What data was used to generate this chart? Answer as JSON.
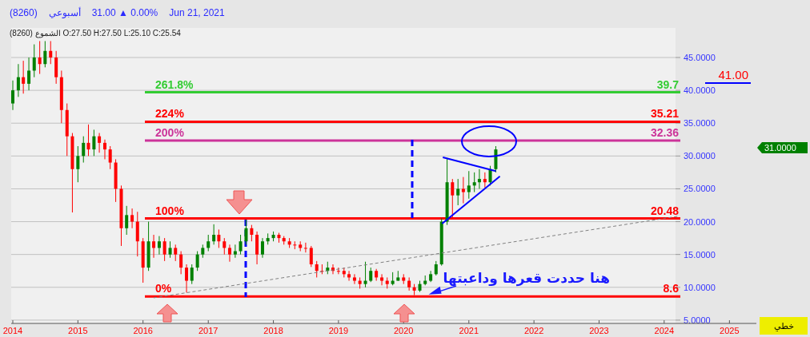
{
  "chart_data": {
    "type": "candlestick",
    "title": "(8260)   أسبوعي   31.00 ▲ 0.00%   Jun 21, 2021",
    "subtitle": "الشموع (8260) O:27.50  H:27.50  L:25.10  C:25.54",
    "xlim": [
      "2013-12-23",
      "2025-06-01"
    ],
    "xticks": [
      {
        "value": "2014-01-01",
        "label": "2014"
      },
      {
        "value": "2015-01-01",
        "label": "2015"
      },
      {
        "value": "2016-01-01",
        "label": "2016"
      },
      {
        "value": "2017-01-01",
        "label": "2017"
      },
      {
        "value": "2018-01-01",
        "label": "2018"
      },
      {
        "value": "2019-01-01",
        "label": "2019"
      },
      {
        "value": "2020-01-01",
        "label": "2020"
      },
      {
        "value": "2021-01-01",
        "label": "2021"
      },
      {
        "value": "2022-01-01",
        "label": "2022"
      },
      {
        "value": "2023-01-01",
        "label": "2023"
      },
      {
        "value": "2024-01-01",
        "label": "2024"
      },
      {
        "value": "2025-01-01",
        "label": "2025"
      }
    ],
    "ylim": [
      4.5,
      49.5
    ],
    "yticks": [
      {
        "value": 5,
        "label": "5.0000"
      },
      {
        "value": 10,
        "label": "10.0000"
      },
      {
        "value": 15,
        "label": "15.0000"
      },
      {
        "value": 20,
        "label": "20.0000"
      },
      {
        "value": 25,
        "label": "25.0000"
      },
      {
        "value": 30,
        "label": "30.0000"
      },
      {
        "value": 35,
        "label": "35.0000"
      },
      {
        "value": 40,
        "label": "40.0000"
      },
      {
        "value": 45,
        "label": "45.0000"
      }
    ],
    "grid": "y",
    "series": [
      {
        "color": "#008000",
        "x": [
          "2014-01",
          "2014-02",
          "2014-04",
          "2014-05",
          "2014-07",
          "2015-01",
          "2015-02",
          "2015-04",
          "2015-10",
          "2016-02",
          "2016-04",
          "2016-06",
          "2016-10",
          "2016-11",
          "2016-12",
          "2017-01",
          "2017-02",
          "2017-06",
          "2017-07",
          "2017-08",
          "2017-11",
          "2017-12",
          "2018-01",
          "2018-11",
          "2019-06",
          "2019-07",
          "2019-11",
          "2019-12",
          "2020-04",
          "2020-05",
          "2020-06",
          "2020-07",
          "2020-08",
          "2020-09",
          "2020-11",
          "2021-01",
          "2021-02",
          "2021-03",
          "2021-05",
          "2021-06"
        ],
        "ohlc": [
          [
            38,
            41.5,
            37,
            40
          ],
          [
            40,
            44,
            39,
            42
          ],
          [
            41,
            45,
            40,
            43
          ],
          [
            43,
            47,
            42,
            45
          ],
          [
            44,
            47.5,
            43.5,
            46
          ],
          [
            28,
            31.5,
            26,
            30
          ],
          [
            30,
            33,
            29,
            32
          ],
          [
            31,
            34,
            30,
            33
          ],
          [
            19,
            22.4,
            18,
            21
          ],
          [
            13,
            20,
            12.5,
            17
          ],
          [
            16,
            17.8,
            15,
            17
          ],
          [
            15,
            17,
            14.5,
            16
          ],
          [
            11,
            13.5,
            10.5,
            13
          ],
          [
            13,
            15.5,
            12.5,
            15
          ],
          [
            15,
            16.5,
            14.5,
            16
          ],
          [
            16,
            18,
            15.5,
            17
          ],
          [
            17,
            19.6,
            16.5,
            18
          ],
          [
            15,
            16.5,
            14.5,
            15.5
          ],
          [
            15.5,
            18,
            15,
            17
          ],
          [
            17,
            20.3,
            16.5,
            19
          ],
          [
            15,
            17.5,
            14.5,
            17
          ],
          [
            17,
            18.2,
            16.5,
            17.5
          ],
          [
            17.5,
            18.5,
            17,
            18
          ],
          [
            12.5,
            13.9,
            12,
            13
          ],
          [
            10.5,
            13.9,
            10,
            11
          ],
          [
            11,
            13,
            10.8,
            12.5
          ],
          [
            10.5,
            12.3,
            10.3,
            11
          ],
          [
            11,
            12.5,
            11,
            11.5
          ],
          [
            9.5,
            11,
            9.3,
            10.5
          ],
          [
            10.5,
            11.8,
            10.3,
            11
          ],
          [
            11,
            12.5,
            10.8,
            12
          ],
          [
            12,
            14,
            11.8,
            13.5
          ],
          [
            13.5,
            20.5,
            13.3,
            20
          ],
          [
            20,
            29.7,
            19.5,
            26
          ],
          [
            24,
            26.5,
            22.5,
            25
          ],
          [
            24.5,
            27.7,
            23.5,
            25.5
          ],
          [
            25.5,
            27.5,
            24.5,
            26
          ],
          [
            26,
            28,
            25,
            26.5
          ],
          [
            26,
            28.5,
            25.5,
            28
          ],
          [
            28,
            31.5,
            27.5,
            31
          ]
        ]
      },
      {
        "color": "#ff0000",
        "x": [
          "2014-03",
          "2014-06",
          "2014-08",
          "2014-09",
          "2014-10",
          "2014-11",
          "2014-12",
          "2015-03",
          "2015-05",
          "2015-06",
          "2015-07",
          "2015-08",
          "2015-09",
          "2015-11",
          "2015-12",
          "2016-01",
          "2016-03",
          "2016-05",
          "2016-07",
          "2016-08",
          "2016-09",
          "2017-03",
          "2017-04",
          "2017-05",
          "2017-09",
          "2017-10",
          "2018-02",
          "2018-03",
          "2018-04",
          "2018-05",
          "2018-06",
          "2018-07",
          "2018-08",
          "2018-09",
          "2018-10",
          "2018-12",
          "2019-01",
          "2019-02",
          "2019-03",
          "2019-04",
          "2019-05",
          "2019-08",
          "2019-09",
          "2019-10",
          "2020-01",
          "2020-02",
          "2020-03",
          "2020-10",
          "2020-12",
          "2021-04"
        ],
        "ohlc": [
          [
            42,
            44.5,
            39.5,
            41
          ],
          [
            45,
            47.5,
            42.5,
            44
          ],
          [
            46,
            47.5,
            44,
            45
          ],
          [
            45,
            46,
            41,
            42
          ],
          [
            42,
            43,
            35,
            37
          ],
          [
            37,
            38,
            30,
            33
          ],
          [
            33,
            33.5,
            21.4,
            28
          ],
          [
            32,
            34.8,
            30,
            31
          ],
          [
            33,
            33.5,
            30.5,
            32
          ],
          [
            32,
            32.5,
            29.5,
            31
          ],
          [
            31,
            31.5,
            28,
            29
          ],
          [
            29,
            29.5,
            23,
            25
          ],
          [
            25,
            25.5,
            16.3,
            19
          ],
          [
            21,
            22,
            19,
            20
          ],
          [
            20,
            21.5,
            14.7,
            17
          ],
          [
            17,
            17.5,
            10.7,
            13
          ],
          [
            17,
            18,
            14.5,
            16
          ],
          [
            17,
            17.5,
            14,
            15
          ],
          [
            16,
            16.5,
            14,
            15
          ],
          [
            15,
            15.5,
            12,
            13
          ],
          [
            13,
            13.5,
            9.2,
            11
          ],
          [
            18,
            18.8,
            16,
            17
          ],
          [
            17,
            17.5,
            15,
            16
          ],
          [
            16,
            16.5,
            13.9,
            15
          ],
          [
            19,
            19.5,
            17,
            18
          ],
          [
            18,
            18.5,
            13.5,
            15
          ],
          [
            18,
            18.3,
            16.8,
            17.5
          ],
          [
            17.5,
            17.8,
            16.5,
            17
          ],
          [
            17,
            17.5,
            16,
            16.5
          ],
          [
            16.5,
            17,
            15.8,
            16.5
          ],
          [
            16.5,
            17,
            15.5,
            16
          ],
          [
            16,
            16.8,
            15.3,
            16
          ],
          [
            16,
            16.3,
            13.1,
            13.5
          ],
          [
            13.5,
            14,
            11.5,
            12.5
          ],
          [
            12.5,
            13.5,
            12,
            12.5
          ],
          [
            13,
            13.5,
            12,
            12.5
          ],
          [
            12.5,
            13,
            12,
            12.5
          ],
          [
            12.5,
            13,
            11.5,
            12
          ],
          [
            12,
            12.5,
            11,
            11.5
          ],
          [
            11.5,
            12,
            10.5,
            11
          ],
          [
            11,
            11.5,
            9.8,
            10.5
          ],
          [
            12.5,
            12.8,
            11,
            11.5
          ],
          [
            11.5,
            12,
            10.3,
            11
          ],
          [
            11,
            11.5,
            9.8,
            10.5
          ],
          [
            11.5,
            12,
            10.5,
            11
          ],
          [
            11,
            11.5,
            9.5,
            10
          ],
          [
            10,
            10.5,
            8.8,
            9.5
          ],
          [
            26,
            26.5,
            20.5,
            24
          ],
          [
            25,
            26.8,
            22.8,
            24.5
          ],
          [
            26.5,
            27.5,
            25.2,
            26
          ]
        ]
      },
      {
        "type": "line",
        "color": "#808080",
        "line_style": "dashed",
        "x": [
          "2016-03-01",
          "2024-03-15"
        ],
        "values": [
          8.4,
          20.8
        ]
      },
      {
        "type": "line",
        "color": "#0000ff",
        "line_style": "solid",
        "x": [
          "2020-08-08",
          "2021-06-01"
        ],
        "values": [
          29.8,
          27.7
        ]
      },
      {
        "type": "line",
        "color": "#0000ff",
        "line_style": "solid",
        "x": [
          "2020-08-04",
          "2021-06-24"
        ],
        "values": [
          19.7,
          26.9
        ]
      }
    ],
    "ref_lines": [
      {
        "axis": "y",
        "value": 39.7,
        "label": "39.7",
        "color": "#33cc33"
      },
      {
        "axis": "y",
        "value": 35.21,
        "label": "35.21",
        "color": "#ff0000"
      },
      {
        "axis": "y",
        "value": 32.36,
        "label": "32.36",
        "color": "#cc3399"
      },
      {
        "axis": "y",
        "value": 20.48,
        "label": "20.48",
        "color": "#ff0000"
      },
      {
        "axis": "y",
        "value": 8.6,
        "label": "8.6",
        "color": "#ff0000"
      }
    ],
    "annotations": [
      {
        "text": "هنا حددت قعرها وداعبتها",
        "x": "2020-03",
        "y": 8.8
      },
      "41.00",
      "31.0000",
      "خطي",
      {
        "text": "261.8%",
        "x": "2016-03-01",
        "y": 39.7
      },
      {
        "text": "224%",
        "x": "2016-03-01",
        "y": 35.21
      },
      {
        "text": "200%",
        "x": "2016-03-01",
        "y": 32.36
      },
      {
        "text": "100%",
        "x": "2016-03-01",
        "y": 20.48
      },
      {
        "text": "0%",
        "x": "2016-03-01",
        "y": 8.6
      }
    ]
  }
}
